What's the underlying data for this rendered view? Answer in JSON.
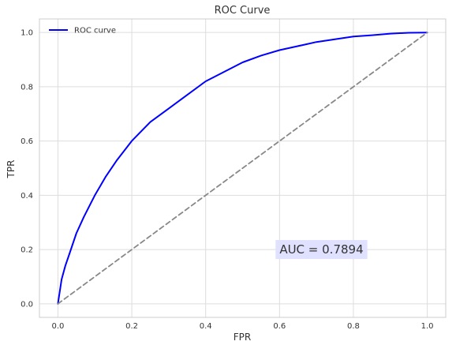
{
  "chart_data": {
    "type": "line",
    "title": "ROC Curve",
    "xlabel": "FPR",
    "ylabel": "TPR",
    "xlim": [
      -0.05,
      1.05
    ],
    "ylim": [
      -0.05,
      1.05
    ],
    "xticks": [
      0.0,
      0.2,
      0.4,
      0.6,
      0.8,
      1.0
    ],
    "xtick_labels": [
      "0.0",
      "0.2",
      "0.4",
      "0.6",
      "0.8",
      "1.0"
    ],
    "yticks": [
      0.0,
      0.2,
      0.4,
      0.6,
      0.8,
      1.0
    ],
    "ytick_labels": [
      "0.0",
      "0.2",
      "0.4",
      "0.6",
      "0.8",
      "1.0"
    ],
    "grid": true,
    "legend_position": "top-left",
    "series": [
      {
        "name": "ROC curve",
        "color": "#0000ff",
        "style": "solid",
        "x": [
          0.0,
          0.01,
          0.02,
          0.03,
          0.05,
          0.07,
          0.1,
          0.13,
          0.16,
          0.2,
          0.25,
          0.3,
          0.35,
          0.4,
          0.45,
          0.5,
          0.55,
          0.6,
          0.65,
          0.7,
          0.75,
          0.8,
          0.85,
          0.9,
          0.95,
          1.0
        ],
        "y": [
          0.0,
          0.09,
          0.14,
          0.18,
          0.26,
          0.32,
          0.4,
          0.47,
          0.53,
          0.6,
          0.67,
          0.72,
          0.77,
          0.82,
          0.855,
          0.89,
          0.915,
          0.935,
          0.95,
          0.965,
          0.975,
          0.985,
          0.99,
          0.996,
          0.999,
          1.0
        ]
      },
      {
        "color": "#888888",
        "style": "dashed",
        "x": [
          0.0,
          1.0
        ],
        "y": [
          0.0,
          1.0
        ]
      }
    ],
    "annotations": [
      {
        "text": "AUC = 0.7894",
        "x": 0.6,
        "y": 0.2,
        "background": "#e0e0ff"
      }
    ]
  }
}
